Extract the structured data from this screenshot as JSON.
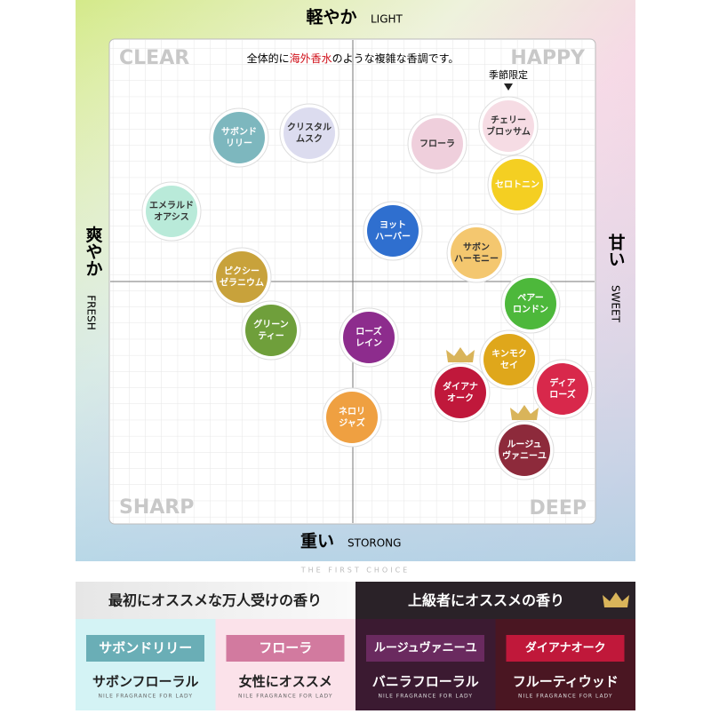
{
  "axes": {
    "top": "軽やか",
    "top_en": "LIGHT",
    "bottom": "重い",
    "bottom_en": "STORONG",
    "left": "爽やか",
    "left_en": "FRESH",
    "right": "甘い",
    "right_en": "SWEET"
  },
  "corners": [
    "CLEAR",
    "HAPPY",
    "SHARP",
    "DEEP"
  ],
  "note": [
    "全体的に",
    "海外香水",
    "のような複雑な香調です。"
  ],
  "nodes": [
    {
      "lines": [
        "サボンド",
        "リリー"
      ],
      "color": "#7db7be"
    },
    {
      "lines": [
        "クリスタル",
        "ムスク"
      ],
      "color": "#dcdcef"
    },
    {
      "lines": [
        "フローラ"
      ],
      "color": "#efcfdc"
    },
    {
      "lines": [
        "チェリー",
        "ブロッサム"
      ],
      "color": "#f6dce4",
      "badge": "季節限定"
    },
    {
      "lines": [
        "セロトニン"
      ],
      "color": "#f4cf22"
    },
    {
      "lines": [
        "エメラルド",
        "オアシス"
      ],
      "color": "#b9ead9"
    },
    {
      "lines": [
        "ヨット",
        "ハーバー"
      ],
      "color": "#2f6fcf"
    },
    {
      "lines": [
        "サボン",
        "ハーモニー"
      ],
      "color": "#f4c76f"
    },
    {
      "lines": [
        "ピクシー",
        "ゼラニウム"
      ],
      "color": "#c8a23b"
    },
    {
      "lines": [
        "ペアー",
        "ロンドン"
      ],
      "color": "#4db83b"
    },
    {
      "lines": [
        "グリーン",
        "ティー"
      ],
      "color": "#6f9f3b"
    },
    {
      "lines": [
        "ローズ",
        "レイン"
      ],
      "color": "#8d2c8d"
    },
    {
      "lines": [
        "キンモク",
        "セイ"
      ],
      "color": "#dfa71b"
    },
    {
      "lines": [
        "ダイアナ",
        "オーク"
      ],
      "color": "#c0183b",
      "crown": true
    },
    {
      "lines": [
        "ディア",
        "ローズ"
      ],
      "color": "#d8284b"
    },
    {
      "lines": [
        "ネロリ",
        "ジャズ"
      ],
      "color": "#efa041"
    },
    {
      "lines": [
        "ルージュ",
        "ヴァニーユ"
      ],
      "color": "#8d2a3b",
      "crown": true
    }
  ],
  "tagline": "THE FIRST CHOICE",
  "sections": [
    {
      "title": "最初にオススメな万人受けの香り",
      "cards": [
        {
          "name": "サボンドリリー",
          "desc": "サボンフローラル",
          "sub": "NILE FRAGRANCE FOR LADY"
        },
        {
          "name": "フローラ",
          "desc": "女性にオススメ",
          "sub": "NILE FRAGRANCE FOR LADY"
        }
      ]
    },
    {
      "title": "上級者にオススメの香り",
      "cards": [
        {
          "name": "ルージュヴァニーユ",
          "desc": "バニラフローラル",
          "sub": "NILE FRAGRANCE FOR LADY"
        },
        {
          "name": "ダイアナオーク",
          "desc": "フルーティウッド",
          "sub": "NILE FRAGRANCE FOR LADY"
        }
      ]
    }
  ]
}
